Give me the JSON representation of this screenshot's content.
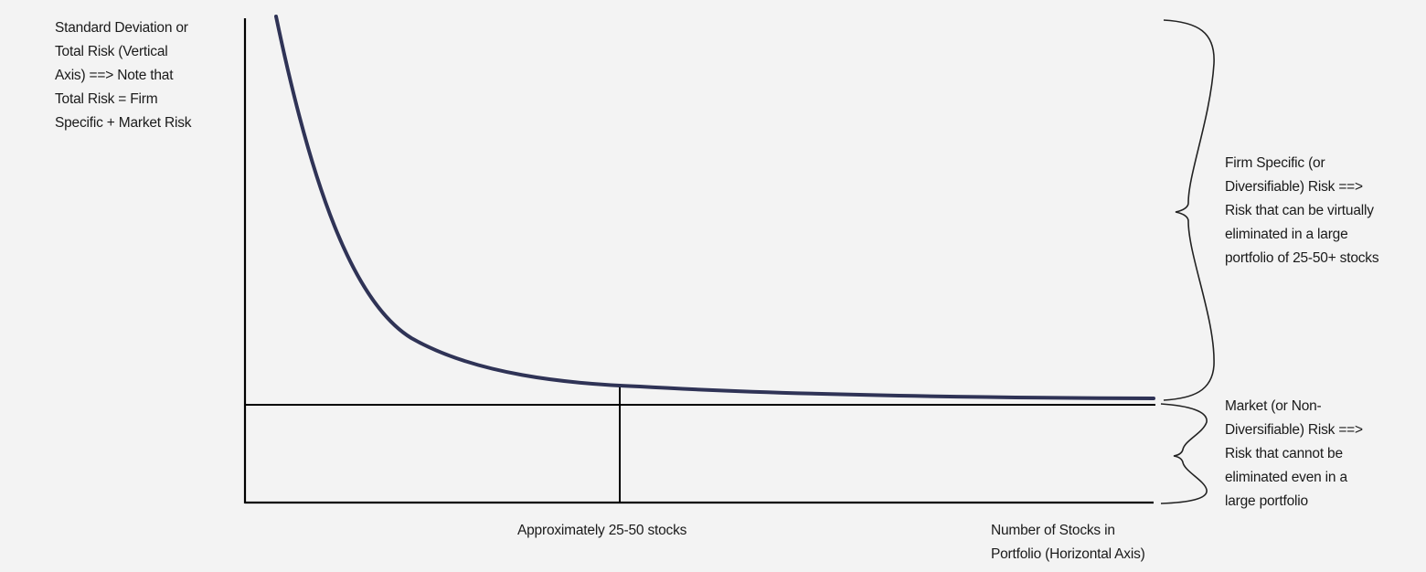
{
  "chart_data": {
    "type": "line",
    "title": "",
    "ylabel_lines": [
      "Standard Deviation or",
      "Total Risk (Vertical",
      "Axis) ==> Note that",
      "Total Risk = Firm",
      "Specific + Market Risk"
    ],
    "xlabel_lines": [
      "Number of Stocks in",
      "Portfolio (Horizontal Axis)"
    ],
    "x_marker_label": "Approximately 25-50 stocks",
    "firm_specific_label_lines": [
      "Firm Specific (or",
      "Diversifiable) Risk ==>",
      "Risk that can be virtually",
      "eliminated in a large",
      "portfolio of 25-50+ stocks"
    ],
    "market_label_lines": [
      "Market (or Non-",
      "Diversifiable) Risk ==>",
      "Risk that cannot be",
      "eliminated even in a",
      "large portfolio"
    ],
    "curve_color": "#2f3356",
    "axis_color": "#000000",
    "grid": false
  }
}
